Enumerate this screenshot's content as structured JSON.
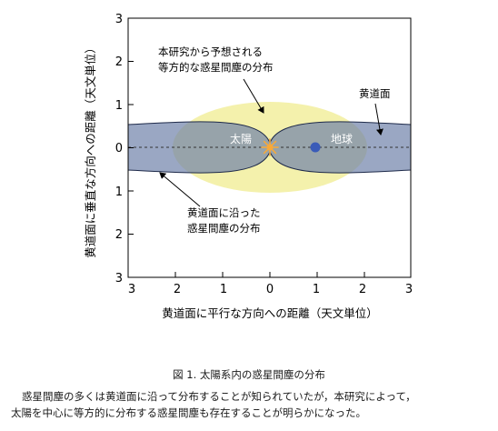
{
  "figure": {
    "y_axis_label": "黄道面に垂直な方向への距離（天文単位）",
    "x_axis_label": "黄道面に平行な方向への距離（天文単位）",
    "y_ticks": [
      "3",
      "2",
      "1",
      "0",
      "1",
      "2",
      "3"
    ],
    "x_ticks": [
      "3",
      "2",
      "1",
      "0",
      "1",
      "2",
      "3"
    ],
    "annotations": {
      "isotropic_line1": "本研究から予想される",
      "isotropic_line2": "等方的な惑星間塵の分布",
      "ecliptic_plane": "黄道面",
      "along_line1": "黄道面に沿った",
      "along_line2": "惑星間塵の分布",
      "sun": "太陽",
      "earth": "地球"
    },
    "colors": {
      "isotropic_fill": "#f2ee9a",
      "ecliptic_fill": "#8f9dbb",
      "ecliptic_stroke": "#1e2a4a",
      "sun": "#f7a93a",
      "earth": "#3a5bb8"
    }
  },
  "caption": "図 1.  太陽系内の惑星間塵の分布",
  "body": {
    "line1": "惑星間塵の多くは黄道面に沿って分布することが知られていたが，本研究によって，",
    "line2": "太陽を中心に等方的に分布する惑星間塵も存在することが明らかになった。"
  }
}
